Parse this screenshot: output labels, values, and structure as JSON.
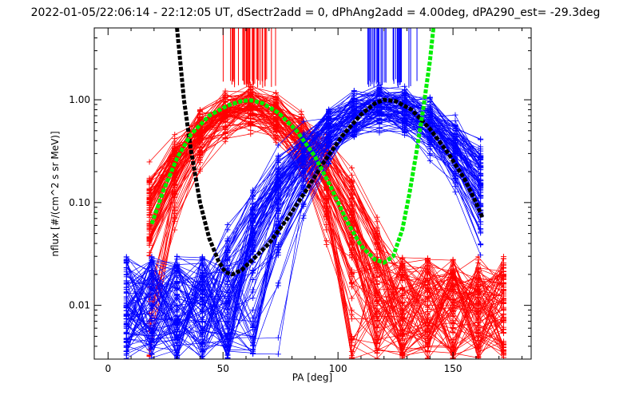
{
  "chart_data": {
    "type": "line",
    "title": "2022-01-05/22:06:14 - 22:12:05 UT, dSectr2add = 0, dPhAng2add = 4.00deg, dPA290_est= -29.3deg",
    "xlabel": "PA [deg]",
    "ylabel": "nflux [#/(cm^2 s sr MeV)]",
    "xlim": [
      -6,
      184
    ],
    "ylim": [
      0.003,
      5
    ],
    "yscale": "log",
    "grid": false,
    "x_ticks": [
      {
        "value": 0,
        "label": "0"
      },
      {
        "value": 50,
        "label": "50"
      },
      {
        "value": 100,
        "label": "100"
      },
      {
        "value": 150,
        "label": "150"
      }
    ],
    "y_ticks": [
      {
        "value": 0.01,
        "label": "0.01"
      },
      {
        "value": 0.1,
        "label": "0.10"
      },
      {
        "value": 1,
        "label": "1.00"
      }
    ],
    "colors": {
      "red_family": "#ff0000",
      "blue_family": "#0000ff",
      "black_fit": "#000000",
      "green_fit": "#00ee00",
      "frame": "#000000"
    },
    "series": [
      {
        "color": "red",
        "peak_pa": 61,
        "pa_points": [
          18,
          29,
          40,
          51,
          62,
          73,
          84,
          95,
          106,
          117,
          128,
          139,
          150,
          161,
          172
        ],
        "peak_range": [
          0.6,
          1.1
        ],
        "fall_width_deg": 19,
        "floor_range": [
          0.003,
          0.03
        ],
        "curve_count": 90,
        "marker": "+"
      },
      {
        "color": "blue",
        "peak_pa": 120,
        "pa_points": [
          8,
          19,
          30,
          41,
          52,
          63,
          74,
          85,
          96,
          107,
          118,
          129,
          140,
          151,
          162
        ],
        "peak_range": [
          0.6,
          1.1
        ],
        "fall_width_deg": 22,
        "floor_range": [
          0.003,
          0.03
        ],
        "curve_count": 90,
        "marker": "+"
      }
    ],
    "fits": [
      {
        "color": "black",
        "style": "thick-dashed",
        "points": [
          [
            30,
            5
          ],
          [
            33,
            1.0
          ],
          [
            36,
            0.33
          ],
          [
            40,
            0.1
          ],
          [
            44,
            0.045
          ],
          [
            48,
            0.027
          ],
          [
            51,
            0.021
          ],
          [
            54,
            0.02
          ],
          [
            58,
            0.022
          ],
          [
            63,
            0.028
          ],
          [
            70,
            0.04
          ],
          [
            78,
            0.07
          ],
          [
            86,
            0.13
          ],
          [
            94,
            0.25
          ],
          [
            102,
            0.45
          ],
          [
            110,
            0.72
          ],
          [
            116,
            0.92
          ],
          [
            120,
            1.0
          ],
          [
            125,
            0.97
          ],
          [
            132,
            0.8
          ],
          [
            140,
            0.52
          ],
          [
            148,
            0.3
          ],
          [
            155,
            0.17
          ],
          [
            160,
            0.1
          ],
          [
            163,
            0.07
          ]
        ]
      },
      {
        "color": "green",
        "style": "thick-dashed",
        "points": [
          [
            19,
            0.062
          ],
          [
            24,
            0.13
          ],
          [
            30,
            0.27
          ],
          [
            36,
            0.46
          ],
          [
            44,
            0.7
          ],
          [
            52,
            0.88
          ],
          [
            58,
            0.97
          ],
          [
            62,
            0.99
          ],
          [
            67,
            0.93
          ],
          [
            74,
            0.75
          ],
          [
            82,
            0.5
          ],
          [
            90,
            0.28
          ],
          [
            97,
            0.14
          ],
          [
            104,
            0.065
          ],
          [
            110,
            0.038
          ],
          [
            116,
            0.028
          ],
          [
            120,
            0.026
          ],
          [
            124,
            0.03
          ],
          [
            128,
            0.055
          ],
          [
            131,
            0.12
          ],
          [
            134,
            0.3
          ],
          [
            137,
            0.8
          ],
          [
            140,
            2.4
          ],
          [
            141.5,
            5
          ]
        ]
      }
    ]
  }
}
